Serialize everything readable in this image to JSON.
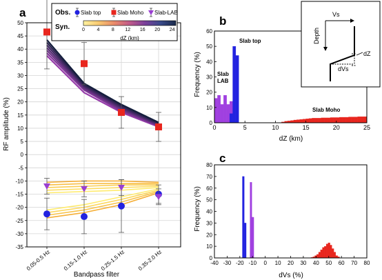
{
  "colors": {
    "blue": "#2323e0",
    "red": "#e8261e",
    "purple": "#a040e0",
    "purple_marker": "#9a3fd1",
    "black": "#000000"
  },
  "chart_data": [
    {
      "id": "a",
      "panel_label": "a",
      "type": "line",
      "xlabel": "Bandpass filter",
      "ylabel": "RF amplitude (%)",
      "ylim": [
        -35,
        50
      ],
      "yticks": [
        -35,
        -30,
        -25,
        -20,
        -15,
        -10,
        -5,
        0,
        5,
        10,
        15,
        20,
        25,
        30,
        35,
        40,
        45,
        50
      ],
      "categories": [
        "0.05-0.5 Hz",
        "0.15-1.0 Hz",
        "0.25-1.5 Hz",
        "0.35-2.0 Hz"
      ],
      "legend": {
        "obs_label": "Obs.",
        "syn_label": "Syn.",
        "entries": [
          "Slab top",
          "Slab Moho",
          "Slab-LAB"
        ],
        "colorbar_label": "dZ (km)",
        "colorbar_ticks": [
          0,
          4,
          8,
          12,
          16,
          20,
          24
        ]
      },
      "observed": [
        {
          "name": "Slab top",
          "marker": "circle",
          "values": [
            -22.5,
            -23.5,
            -19.5,
            -15
          ],
          "err": [
            6,
            6.5,
            10,
            3.5
          ]
        },
        {
          "name": "Slab Moho",
          "marker": "square",
          "values": [
            46.5,
            34.5,
            16,
            10.5
          ],
          "err": [
            14,
            8,
            6,
            5.5
          ]
        },
        {
          "name": "Slab-LAB",
          "marker": "triangle",
          "values": [
            -12,
            -13,
            -12.5,
            -16
          ],
          "err": [
            3,
            3,
            3,
            3
          ]
        }
      ],
      "synthetic_moho": {
        "colormap": "dZ 0-24 km",
        "values": [
          [
            37.5,
            23.5,
            16,
            10.5
          ],
          [
            38.5,
            24.5,
            16.5,
            10.8
          ],
          [
            39.5,
            25.0,
            17.0,
            11.0
          ],
          [
            40.5,
            25.5,
            17.5,
            11.3
          ],
          [
            41.5,
            26.0,
            18.0,
            11.6
          ],
          [
            42.5,
            26.5,
            18.5,
            11.9
          ],
          [
            43.5,
            27.0,
            19.0,
            12.2
          ]
        ]
      },
      "synthetic_top": {
        "values": [
          [
            -24,
            -22,
            -19,
            -14.5
          ],
          [
            -23,
            -21,
            -18,
            -14
          ],
          [
            -22,
            -20,
            -17,
            -13.5
          ],
          [
            -21,
            -19,
            -16,
            -13
          ]
        ]
      },
      "synthetic_lab": {
        "values": [
          [
            -14.5,
            -14,
            -13.5,
            -12.5
          ],
          [
            -13.5,
            -13,
            -12.5,
            -12
          ],
          [
            -12.5,
            -12,
            -11.5,
            -11.5
          ],
          [
            -11.5,
            -11,
            -11,
            -11
          ],
          [
            -10.5,
            -10,
            -10,
            -10.5
          ]
        ]
      }
    },
    {
      "id": "b",
      "panel_label": "b",
      "type": "bar",
      "xlabel": "dZ (km)",
      "ylabel": "Frequency (%)",
      "xlim": [
        0,
        25
      ],
      "ylim": [
        0,
        60
      ],
      "xticks": [
        0,
        5,
        10,
        15,
        20,
        25
      ],
      "yticks": [
        0,
        10,
        20,
        30,
        40,
        50,
        60
      ],
      "bin_width": 0.5,
      "annotations": {
        "slab_top": "Slab top",
        "slab_lab": "Slab\nLAB",
        "slab_moho": "Slab Moho"
      },
      "series": [
        {
          "name": "Slab-LAB",
          "color_key": "purple",
          "bin_starts": [
            0,
            0.5,
            1,
            1.5,
            2,
            2.5
          ],
          "values": [
            16,
            18,
            12,
            18,
            12,
            14
          ]
        },
        {
          "name": "Slab top",
          "color_key": "blue",
          "bin_starts": [
            2.5,
            3,
            3.5
          ],
          "values": [
            6,
            50,
            44
          ]
        },
        {
          "name": "Slab Moho",
          "color_key": "red",
          "bin_starts": [
            11,
            11.5,
            12,
            12.5,
            13,
            13.5,
            14,
            14.5,
            15,
            15.5,
            16,
            16.5,
            17,
            17.5,
            18,
            18.5,
            19,
            19.5,
            20,
            20.5,
            21,
            21.5,
            22,
            22.5,
            23,
            23.5,
            24,
            24.5
          ],
          "values": [
            0.5,
            1,
            1.2,
            1.5,
            1.8,
            2,
            2.2,
            2.4,
            2.6,
            2.8,
            3,
            3,
            3,
            3.2,
            3.2,
            3.2,
            3.4,
            3.4,
            3.4,
            3.6,
            3.6,
            3.6,
            3.8,
            3.8,
            3.8,
            4,
            4,
            4
          ]
        }
      ],
      "inset": {
        "labels": {
          "vs": "Vs",
          "depth": "Depth",
          "dz": "dZ",
          "dvs": "dVs"
        }
      }
    },
    {
      "id": "c",
      "panel_label": "c",
      "type": "bar",
      "xlabel": "dVs (%)",
      "ylabel": "Frequency (%)",
      "xlim": [
        -40,
        80
      ],
      "ylim": [
        0,
        80
      ],
      "xticks": [
        -40,
        -30,
        -20,
        -10,
        0,
        10,
        20,
        30,
        40,
        50,
        60,
        70,
        80
      ],
      "yticks": [
        0,
        10,
        20,
        30,
        40,
        50,
        60,
        70,
        80
      ],
      "bin_width": 1.5,
      "series": [
        {
          "name": "Slab top",
          "color_key": "blue",
          "bin_starts": [
            -18,
            -16.5
          ],
          "values": [
            70,
            30
          ]
        },
        {
          "name": "Slab-LAB",
          "color_key": "purple",
          "bin_starts": [
            -12,
            -10.5
          ],
          "values": [
            65,
            35
          ]
        },
        {
          "name": "Slab Moho",
          "color_key": "red",
          "bin_starts": [
            36,
            37.5,
            39,
            40.5,
            42,
            43.5,
            45,
            46.5,
            48,
            49.5,
            51,
            52.5,
            54,
            55.5,
            57
          ],
          "values": [
            0.5,
            1,
            2,
            3,
            5,
            7,
            9,
            10,
            12,
            13,
            11,
            8,
            5,
            2,
            1
          ]
        }
      ]
    }
  ]
}
